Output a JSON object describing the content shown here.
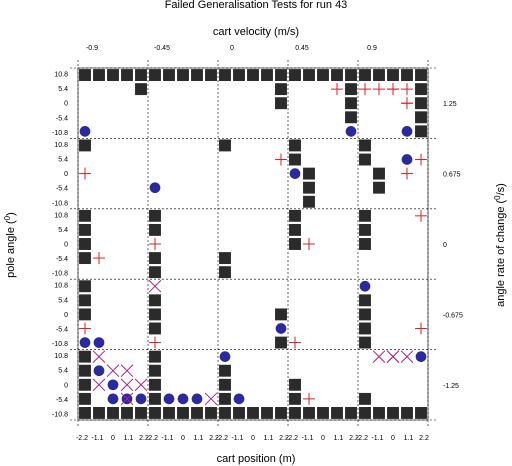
{
  "chart_data": {
    "type": "scatter",
    "title": "Failed Generalisation Tests for run 43",
    "top_axis_label": "cart velocity (m/s)",
    "top_ticks": [
      "-0.9",
      "-0.45",
      "0",
      "0.45",
      "0.9"
    ],
    "bottom_axis_label": "cart position (m)",
    "bottom_ticks": [
      "-2.2",
      "-1.1",
      "0",
      "1.1",
      "2.2"
    ],
    "left_axis_label": "pole angle (",
    "left_axis_label_sup": "0",
    "left_axis_label_end": ")",
    "left_ticks": [
      "10.8",
      "5.4",
      "0",
      "-5.4",
      "-10.8"
    ],
    "right_axis_label": "angle rate of change (",
    "right_axis_label_sup": "0",
    "right_axis_label_end": "/s)",
    "right_ticks": [
      "1.25",
      "0.675",
      "0",
      "-0.675",
      "-1.25"
    ],
    "grid": true,
    "panels": {
      "rows": 5,
      "cols": 5
    },
    "marker_legend": {
      "square": "black square",
      "cross": "red plus",
      "x": "magenta cross",
      "circle": "blue circle"
    },
    "colors": {
      "square": "#2b2b2b",
      "cross": "#d62020",
      "x": "#b0208a",
      "circle": "#2a2aa0"
    },
    "markers": [
      [
        0,
        0,
        0,
        0,
        "square"
      ],
      [
        0,
        0,
        0,
        1,
        "square"
      ],
      [
        0,
        0,
        0,
        2,
        "square"
      ],
      [
        0,
        0,
        0,
        3,
        "square"
      ],
      [
        0,
        0,
        0,
        4,
        "square"
      ],
      [
        0,
        0,
        1,
        4,
        "square"
      ],
      [
        0,
        0,
        4,
        0,
        "circle"
      ],
      [
        0,
        1,
        0,
        0,
        "square"
      ],
      [
        0,
        1,
        0,
        1,
        "square"
      ],
      [
        0,
        1,
        0,
        2,
        "square"
      ],
      [
        0,
        1,
        0,
        3,
        "square"
      ],
      [
        0,
        1,
        0,
        4,
        "square"
      ],
      [
        0,
        2,
        0,
        0,
        "square"
      ],
      [
        0,
        2,
        0,
        1,
        "square"
      ],
      [
        0,
        2,
        0,
        2,
        "square"
      ],
      [
        0,
        2,
        0,
        3,
        "square"
      ],
      [
        0,
        2,
        0,
        4,
        "square"
      ],
      [
        0,
        2,
        1,
        4,
        "square"
      ],
      [
        0,
        2,
        2,
        4,
        "square"
      ],
      [
        0,
        3,
        0,
        0,
        "square"
      ],
      [
        0,
        3,
        0,
        1,
        "square"
      ],
      [
        0,
        3,
        0,
        2,
        "square"
      ],
      [
        0,
        3,
        0,
        3,
        "square"
      ],
      [
        0,
        3,
        0,
        4,
        "square"
      ],
      [
        0,
        3,
        1,
        3,
        "cross"
      ],
      [
        0,
        3,
        1,
        4,
        "square"
      ],
      [
        0,
        3,
        2,
        4,
        "square"
      ],
      [
        0,
        3,
        3,
        4,
        "square"
      ],
      [
        0,
        3,
        4,
        4,
        "circle"
      ],
      [
        0,
        4,
        0,
        0,
        "square"
      ],
      [
        0,
        4,
        0,
        1,
        "square"
      ],
      [
        0,
        4,
        0,
        2,
        "square"
      ],
      [
        0,
        4,
        0,
        3,
        "square"
      ],
      [
        0,
        4,
        0,
        4,
        "square"
      ],
      [
        0,
        4,
        1,
        2,
        "cross"
      ],
      [
        0,
        4,
        2,
        3,
        "cross"
      ],
      [
        0,
        4,
        1,
        4,
        "square"
      ],
      [
        0,
        4,
        2,
        4,
        "square"
      ],
      [
        0,
        4,
        3,
        4,
        "square"
      ],
      [
        0,
        4,
        4,
        4,
        "square"
      ],
      [
        0,
        5,
        1,
        0,
        "cross"
      ],
      [
        0,
        5,
        1,
        1,
        "cross"
      ],
      [
        0,
        5,
        1,
        2,
        "cross"
      ],
      [
        0,
        5,
        1,
        3,
        "cross"
      ],
      [
        0,
        5,
        2,
        3,
        "cross"
      ],
      [
        0,
        5,
        4,
        3,
        "circle"
      ],
      [
        1,
        0,
        0,
        0,
        "square"
      ],
      [
        1,
        0,
        2,
        0,
        "cross"
      ],
      [
        1,
        1,
        3,
        0,
        "circle"
      ],
      [
        1,
        2,
        0,
        0,
        "square"
      ],
      [
        1,
        2,
        1,
        4,
        "cross"
      ],
      [
        1,
        3,
        0,
        0,
        "square"
      ],
      [
        1,
        3,
        2,
        0,
        "circle"
      ],
      [
        1,
        3,
        1,
        0,
        "square"
      ],
      [
        1,
        3,
        2,
        1,
        "square"
      ],
      [
        1,
        3,
        3,
        1,
        "square"
      ],
      [
        1,
        3,
        4,
        1,
        "square"
      ],
      [
        1,
        4,
        0,
        0,
        "square"
      ],
      [
        1,
        4,
        1,
        4,
        "cross"
      ],
      [
        1,
        4,
        1,
        0,
        "square"
      ],
      [
        1,
        4,
        2,
        1,
        "square"
      ],
      [
        1,
        4,
        3,
        1,
        "square"
      ],
      [
        1,
        5,
        1,
        3,
        "circle"
      ],
      [
        1,
        5,
        2,
        3,
        "cross"
      ],
      [
        2,
        0,
        0,
        0,
        "square"
      ],
      [
        2,
        0,
        1,
        0,
        "square"
      ],
      [
        2,
        0,
        2,
        0,
        "square"
      ],
      [
        2,
        0,
        3,
        0,
        "square"
      ],
      [
        2,
        0,
        3,
        1,
        "cross"
      ],
      [
        2,
        1,
        0,
        0,
        "square"
      ],
      [
        2,
        1,
        1,
        0,
        "square"
      ],
      [
        2,
        1,
        2,
        0,
        "cross"
      ],
      [
        2,
        1,
        3,
        0,
        "square"
      ],
      [
        2,
        1,
        4,
        0,
        "square"
      ],
      [
        2,
        2,
        3,
        0,
        "square"
      ],
      [
        2,
        2,
        4,
        0,
        "square"
      ],
      [
        2,
        3,
        0,
        0,
        "square"
      ],
      [
        2,
        3,
        1,
        0,
        "square"
      ],
      [
        2,
        3,
        2,
        0,
        "square"
      ],
      [
        2,
        3,
        2,
        1,
        "cross"
      ],
      [
        2,
        4,
        0,
        0,
        "square"
      ],
      [
        2,
        4,
        1,
        0,
        "square"
      ],
      [
        2,
        4,
        2,
        0,
        "square"
      ],
      [
        2,
        5,
        0,
        4,
        "cross"
      ],
      [
        3,
        0,
        0,
        0,
        "square"
      ],
      [
        3,
        0,
        1,
        0,
        "square"
      ],
      [
        3,
        0,
        2,
        0,
        "square"
      ],
      [
        3,
        0,
        3,
        0,
        "cross"
      ],
      [
        3,
        0,
        4,
        0,
        "circle"
      ],
      [
        3,
        0,
        4,
        1,
        "circle"
      ],
      [
        3,
        1,
        0,
        0,
        "x"
      ],
      [
        3,
        1,
        1,
        0,
        "square"
      ],
      [
        3,
        1,
        2,
        0,
        "square"
      ],
      [
        3,
        1,
        3,
        0,
        "square"
      ],
      [
        3,
        1,
        4,
        0,
        "cross"
      ],
      [
        3,
        2,
        2,
        4,
        "square"
      ],
      [
        3,
        2,
        3,
        4,
        "circle"
      ],
      [
        3,
        2,
        4,
        4,
        "square"
      ],
      [
        3,
        3,
        4,
        0,
        "cross"
      ],
      [
        3,
        4,
        0,
        0,
        "circle"
      ],
      [
        3,
        4,
        1,
        0,
        "square"
      ],
      [
        3,
        4,
        2,
        0,
        "square"
      ],
      [
        3,
        4,
        3,
        0,
        "square"
      ],
      [
        3,
        4,
        4,
        0,
        "square"
      ],
      [
        3,
        5,
        3,
        4,
        "cross"
      ],
      [
        4,
        0,
        0,
        0,
        "square"
      ],
      [
        4,
        0,
        1,
        0,
        "square"
      ],
      [
        4,
        0,
        2,
        0,
        "square"
      ],
      [
        4,
        0,
        3,
        0,
        "square"
      ],
      [
        4,
        0,
        4,
        0,
        "square"
      ],
      [
        4,
        0,
        0,
        1,
        "x"
      ],
      [
        4,
        0,
        1,
        1,
        "circle"
      ],
      [
        4,
        0,
        2,
        2,
        "circle"
      ],
      [
        4,
        0,
        3,
        2,
        "circle"
      ],
      [
        4,
        0,
        3,
        3,
        "circle"
      ],
      [
        4,
        0,
        3,
        4,
        "circle"
      ],
      [
        4,
        0,
        1,
        2,
        "x"
      ],
      [
        4,
        0,
        1,
        3,
        "x"
      ],
      [
        4,
        0,
        2,
        1,
        "x"
      ],
      [
        4,
        0,
        2,
        3,
        "x"
      ],
      [
        4,
        0,
        2,
        4,
        "x"
      ],
      [
        4,
        0,
        3,
        3,
        "x"
      ],
      [
        4,
        0,
        4,
        1,
        "square"
      ],
      [
        4,
        0,
        4,
        2,
        "square"
      ],
      [
        4,
        0,
        4,
        3,
        "square"
      ],
      [
        4,
        0,
        4,
        4,
        "square"
      ],
      [
        4,
        1,
        0,
        0,
        "square"
      ],
      [
        4,
        1,
        1,
        0,
        "square"
      ],
      [
        4,
        1,
        2,
        0,
        "square"
      ],
      [
        4,
        1,
        3,
        0,
        "square"
      ],
      [
        4,
        1,
        4,
        0,
        "square"
      ],
      [
        4,
        1,
        3,
        1,
        "circle"
      ],
      [
        4,
        1,
        3,
        2,
        "circle"
      ],
      [
        4,
        1,
        3,
        3,
        "circle"
      ],
      [
        4,
        1,
        3,
        4,
        "x"
      ],
      [
        4,
        1,
        4,
        1,
        "square"
      ],
      [
        4,
        1,
        4,
        2,
        "square"
      ],
      [
        4,
        1,
        4,
        3,
        "square"
      ],
      [
        4,
        1,
        4,
        4,
        "square"
      ],
      [
        4,
        2,
        0,
        0,
        "circle"
      ],
      [
        4,
        2,
        1,
        0,
        "square"
      ],
      [
        4,
        2,
        2,
        0,
        "square"
      ],
      [
        4,
        2,
        3,
        0,
        "square"
      ],
      [
        4,
        2,
        4,
        0,
        "square"
      ],
      [
        4,
        2,
        3,
        1,
        "circle"
      ],
      [
        4,
        2,
        4,
        1,
        "square"
      ],
      [
        4,
        2,
        4,
        2,
        "square"
      ],
      [
        4,
        2,
        4,
        3,
        "square"
      ],
      [
        4,
        2,
        4,
        4,
        "square"
      ],
      [
        4,
        3,
        2,
        0,
        "square"
      ],
      [
        4,
        3,
        3,
        0,
        "square"
      ],
      [
        4,
        3,
        3,
        1,
        "cross"
      ],
      [
        4,
        3,
        4,
        0,
        "square"
      ],
      [
        4,
        3,
        4,
        1,
        "square"
      ],
      [
        4,
        3,
        4,
        2,
        "square"
      ],
      [
        4,
        3,
        4,
        3,
        "square"
      ],
      [
        4,
        3,
        4,
        4,
        "square"
      ],
      [
        4,
        4,
        0,
        2,
        "x"
      ],
      [
        4,
        4,
        0,
        3,
        "x"
      ],
      [
        4,
        4,
        3,
        0,
        "square"
      ],
      [
        4,
        4,
        4,
        0,
        "square"
      ],
      [
        4,
        4,
        4,
        1,
        "square"
      ],
      [
        4,
        4,
        4,
        2,
        "square"
      ],
      [
        4,
        4,
        4,
        3,
        "square"
      ],
      [
        4,
        4,
        4,
        4,
        "square"
      ],
      [
        4,
        5,
        0,
        1,
        "x"
      ],
      [
        4,
        5,
        0,
        2,
        "x"
      ],
      [
        4,
        5,
        0,
        4,
        "circle"
      ]
    ]
  }
}
